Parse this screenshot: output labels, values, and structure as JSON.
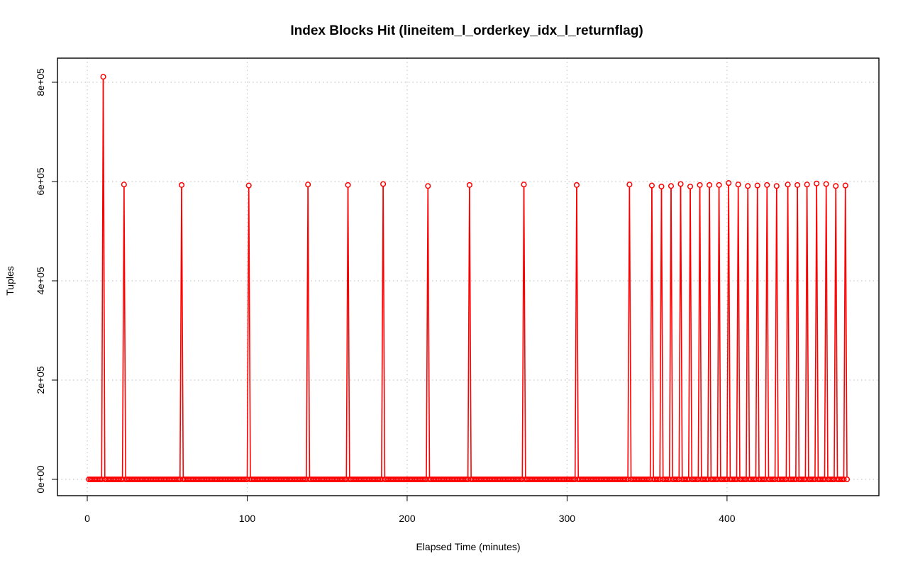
{
  "chart_data": {
    "type": "line",
    "title": "Index Blocks Hit (lineitem_l_orderkey_idx_l_returnflag)",
    "xlabel": "Elapsed Time (minutes)",
    "ylabel": "Tuples",
    "xlim": [
      0,
      475
    ],
    "ylim": [
      0,
      810000
    ],
    "x_ticks": [
      0,
      100,
      200,
      300,
      400
    ],
    "x_tick_labels": [
      "0",
      "100",
      "200",
      "300",
      "400"
    ],
    "y_ticks": [
      0,
      200000,
      400000,
      600000,
      800000
    ],
    "y_tick_labels": [
      "0e+00",
      "2e+05",
      "4e+05",
      "6e+05",
      "8e+05"
    ],
    "grid": true,
    "grid_style": "dotted",
    "series_color": "#ff0000",
    "marker": "open-circle",
    "baseline": 0,
    "series": [
      {
        "spikes": [
          [
            10,
            811000
          ],
          [
            23,
            594000
          ],
          [
            59,
            593000
          ],
          [
            101,
            592000
          ],
          [
            138,
            594000
          ],
          [
            163,
            593000
          ],
          [
            185,
            595000
          ],
          [
            213,
            591000
          ],
          [
            239,
            593000
          ],
          [
            273,
            594000
          ],
          [
            306,
            593000
          ],
          [
            339,
            594000
          ],
          [
            353,
            592000
          ],
          [
            359,
            590000
          ],
          [
            365,
            591000
          ],
          [
            371,
            595000
          ],
          [
            377,
            590000
          ],
          [
            383,
            593000
          ],
          [
            389,
            593000
          ],
          [
            395,
            593000
          ],
          [
            401,
            597000
          ],
          [
            407,
            594000
          ],
          [
            413,
            591000
          ],
          [
            419,
            592000
          ],
          [
            425,
            593000
          ],
          [
            431,
            591000
          ],
          [
            438,
            594000
          ],
          [
            444,
            593000
          ],
          [
            450,
            594000
          ],
          [
            456,
            596000
          ],
          [
            462,
            595000
          ],
          [
            468,
            591000
          ],
          [
            474,
            592000
          ]
        ]
      }
    ]
  }
}
